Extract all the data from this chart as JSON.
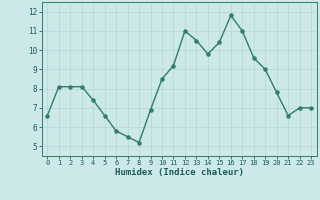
{
  "x": [
    0,
    1,
    2,
    3,
    4,
    5,
    6,
    7,
    8,
    9,
    10,
    11,
    12,
    13,
    14,
    15,
    16,
    17,
    18,
    19,
    20,
    21,
    22,
    23
  ],
  "y": [
    6.6,
    8.1,
    8.1,
    8.1,
    7.4,
    6.6,
    5.8,
    5.5,
    5.2,
    6.9,
    8.5,
    9.2,
    11.0,
    10.5,
    9.8,
    10.4,
    11.8,
    11.0,
    9.6,
    9.0,
    7.8,
    6.6,
    7.0,
    7.0
  ],
  "line_color": "#2e7d6e",
  "marker_color": "#2e7d6e",
  "bg_color": "#cce8e8",
  "grid_color": "#b8d4d4",
  "xlabel": "Humidex (Indice chaleur)",
  "xlim": [
    -0.5,
    23.5
  ],
  "ylim": [
    4.5,
    12.5
  ],
  "yticks": [
    5,
    6,
    7,
    8,
    9,
    10,
    11,
    12
  ],
  "xticks": [
    0,
    1,
    2,
    3,
    4,
    5,
    6,
    7,
    8,
    9,
    10,
    11,
    12,
    13,
    14,
    15,
    16,
    17,
    18,
    19,
    20,
    21,
    22,
    23
  ],
  "font_color": "#1a5c5c",
  "axis_color": "#2e7d6e"
}
